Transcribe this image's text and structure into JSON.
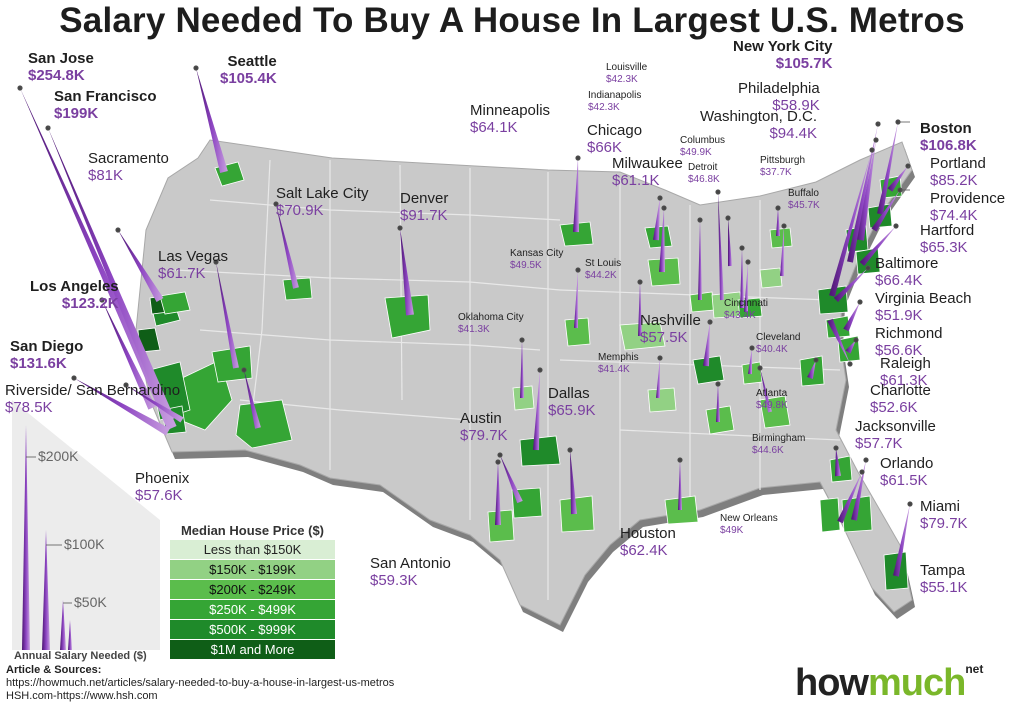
{
  "title": "Salary Needed To Buy A House In Largest U.S. Metros",
  "legend": {
    "title": "Median House Price ($)",
    "items": [
      {
        "label": "Less than $150K",
        "color": "#d9eed4",
        "text_color": "#222"
      },
      {
        "label": "$150K - $199K",
        "color": "#92d184",
        "text_color": "#111"
      },
      {
        "label": "$200K - $249K",
        "color": "#5bbd4c",
        "text_color": "#111"
      },
      {
        "label": "$250K - $499K",
        "color": "#35a535",
        "text_color": "#fff"
      },
      {
        "label": "$500K - $999K",
        "color": "#1f8a2a",
        "text_color": "#fff"
      },
      {
        "label": "$1M and More",
        "color": "#0f5e17",
        "text_color": "#fff"
      }
    ]
  },
  "salary_scale": {
    "title": "Annual Salary Needed ($)",
    "ticks": [
      "$200K",
      "$100K",
      "$50K"
    ]
  },
  "sources": {
    "heading": "Article & Sources:",
    "line1": "https://howmuch.net/articles/salary-needed-to-buy-a-house-in-largest-us-metros",
    "line2": "HSH.com-https://www.hsh.com"
  },
  "logo": {
    "part1": "how",
    "part2": "much",
    "suffix": "net"
  },
  "cities": [
    {
      "name": "San Jose",
      "value": "$254.8K"
    },
    {
      "name": "San Francisco",
      "value": "$199K"
    },
    {
      "name": "Seattle",
      "value": "$105.4K"
    },
    {
      "name": "Sacramento",
      "value": "$81K"
    },
    {
      "name": "Salt Lake City",
      "value": "$70.9K"
    },
    {
      "name": "Denver",
      "value": "$91.7K"
    },
    {
      "name": "Las Vegas",
      "value": "$61.7K"
    },
    {
      "name": "Los Angeles",
      "value": "$123.2K"
    },
    {
      "name": "San Diego",
      "value": "$131.6K"
    },
    {
      "name": "Riverside/ San Bernardino",
      "value": "$78.5K"
    },
    {
      "name": "Phoenix",
      "value": "$57.6K"
    },
    {
      "name": "Minneapolis",
      "value": "$64.1K"
    },
    {
      "name": "Chicago",
      "value": "$66K"
    },
    {
      "name": "Milwaukee",
      "value": "$61.1K"
    },
    {
      "name": "Kansas City",
      "value": "$49.5K"
    },
    {
      "name": "St Louis",
      "value": "$44.2K"
    },
    {
      "name": "Oklahoma City",
      "value": "$41.3K"
    },
    {
      "name": "Nashville",
      "value": "$57.5K"
    },
    {
      "name": "Memphis",
      "value": "$41.4K"
    },
    {
      "name": "Dallas",
      "value": "$65.9K"
    },
    {
      "name": "Austin",
      "value": "$79.7K"
    },
    {
      "name": "San Antonio",
      "value": "$59.3K"
    },
    {
      "name": "Houston",
      "value": "$62.4K"
    },
    {
      "name": "New Orleans",
      "value": "$49K"
    },
    {
      "name": "Louisville",
      "value": "$42.3K"
    },
    {
      "name": "Indianapolis",
      "value": "$42.3K"
    },
    {
      "name": "Columbus",
      "value": "$49.9K"
    },
    {
      "name": "Detroit",
      "value": "$46.8K"
    },
    {
      "name": "Pittsburgh",
      "value": "$37.7K"
    },
    {
      "name": "Buffalo",
      "value": "$45.7K"
    },
    {
      "name": "Cincinnati",
      "value": "$43.4K"
    },
    {
      "name": "Cleveland",
      "value": "$40.4K"
    },
    {
      "name": "Atlanta",
      "value": "$49.8K"
    },
    {
      "name": "Birmingham",
      "value": "$44.6K"
    },
    {
      "name": "New York City",
      "value": "$105.7K"
    },
    {
      "name": "Philadelphia",
      "value": "$58.9K"
    },
    {
      "name": "Washington, D.C.",
      "value": "$94.4K"
    },
    {
      "name": "Boston",
      "value": "$106.8K"
    },
    {
      "name": "Portland",
      "value": "$85.2K"
    },
    {
      "name": "Providence",
      "value": "$74.4K"
    },
    {
      "name": "Hartford",
      "value": "$65.3K"
    },
    {
      "name": "Baltimore",
      "value": "$66.4K"
    },
    {
      "name": "Virginia Beach",
      "value": "$51.9K"
    },
    {
      "name": "Richmond",
      "value": "$56.6K"
    },
    {
      "name": "Raleigh",
      "value": "$61.3K"
    },
    {
      "name": "Charlotte",
      "value": "$52.6K"
    },
    {
      "name": "Jacksonville",
      "value": "$57.7K"
    },
    {
      "name": "Orlando",
      "value": "$61.5K"
    },
    {
      "name": "Miami",
      "value": "$79.7K"
    },
    {
      "name": "Tampa",
      "value": "$55.1K"
    }
  ]
}
